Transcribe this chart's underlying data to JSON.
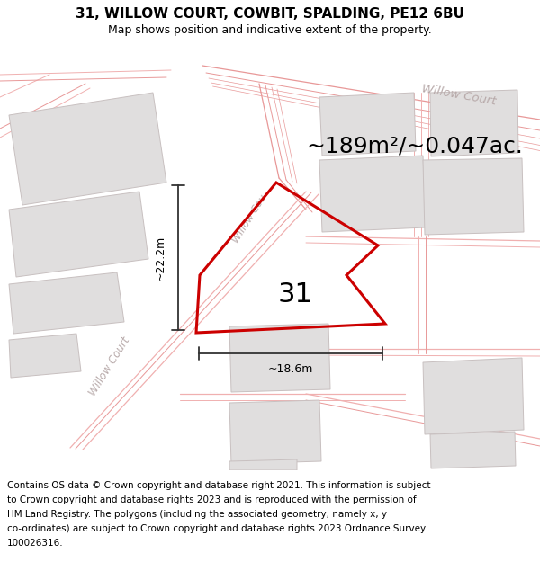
{
  "title_line1": "31, WILLOW COURT, COWBIT, SPALDING, PE12 6BU",
  "title_line2": "Map shows position and indicative extent of the property.",
  "footer_lines": [
    "Contains OS data © Crown copyright and database right 2021. This information is subject",
    "to Crown copyright and database rights 2023 and is reproduced with the permission of",
    "HM Land Registry. The polygons (including the associated geometry, namely x, y",
    "co-ordinates) are subject to Crown copyright and database rights 2023 Ordnance Survey",
    "100026316."
  ],
  "area_label": "~189m²/~0.047ac.",
  "width_label": "~18.6m",
  "height_label": "~22.2m",
  "plot_number": "31",
  "map_bg": "#ffffff",
  "road_line_color": "#f0b0b0",
  "road_line_color2": "#e89898",
  "plot_color": "#cc0000",
  "building_color": "#e0dede",
  "building_edge": "#c8c0c0",
  "road_label_color": "#b8aaaa",
  "dim_color": "#333333",
  "header_fontsize": 11,
  "subtitle_fontsize": 9,
  "area_fontsize": 18,
  "plot_label_fontsize": 22,
  "footer_fontsize": 7.5,
  "dim_label_fontsize": 9
}
